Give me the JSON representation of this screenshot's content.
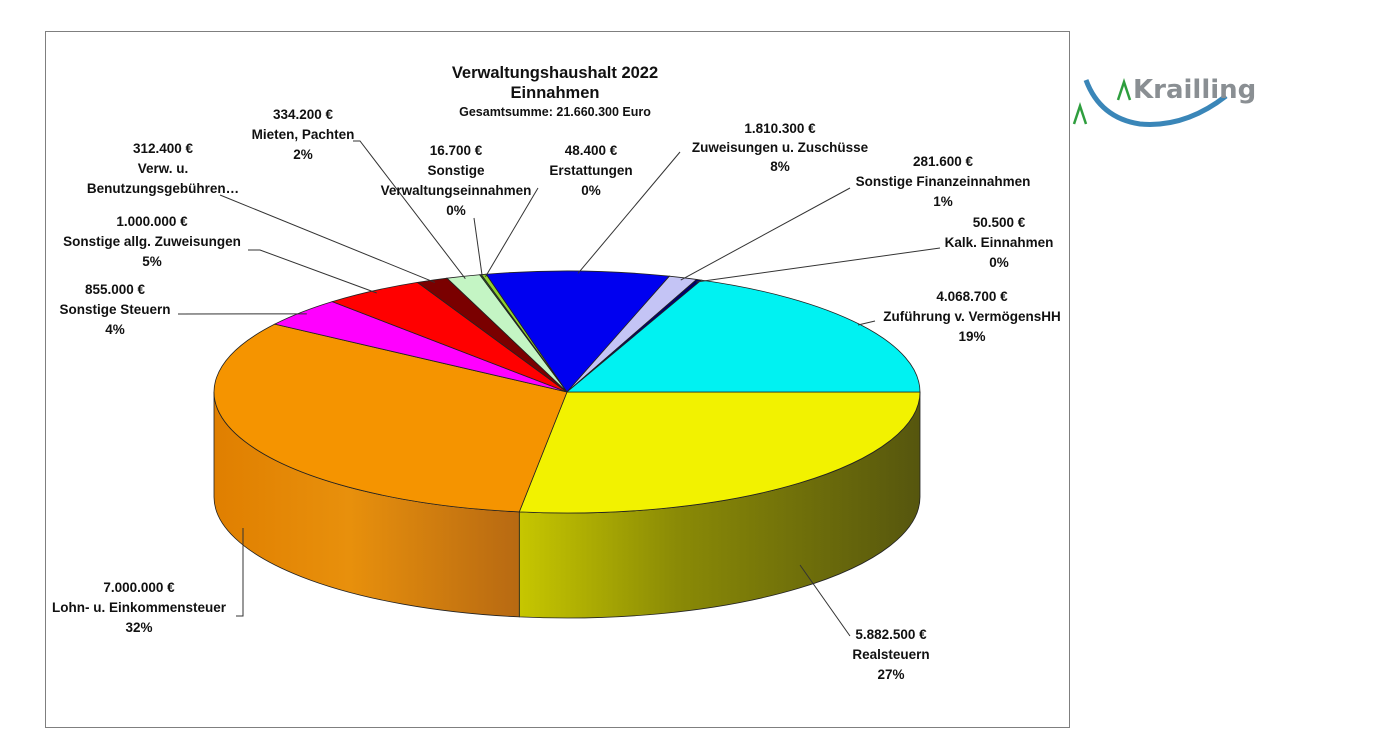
{
  "chart_data": {
    "type": "pie",
    "title": "Verwaltungshaushalt 2022",
    "subtitle": "Einnahmen",
    "total_label": "Gesamtsumme: 21.660.300 Euro",
    "slices": [
      {
        "key": "realsteuern",
        "label": "Realsteuern",
        "value": 5882500,
        "value_label": "5.882.500 €",
        "percent_label": "27%",
        "color": "#f2f200"
      },
      {
        "key": "lohn",
        "label": "Lohn- u. Einkommensteuer",
        "value": 7000000,
        "value_label": "7.000.000 €",
        "percent_label": "32%",
        "color": "#f59400"
      },
      {
        "key": "sonstige_steuern",
        "label": "Sonstige Steuern",
        "value": 855000,
        "value_label": "855.000 €",
        "percent_label": "4%",
        "color": "#ff00ff"
      },
      {
        "key": "zuweisungen_allg",
        "label": "Sonstige allg. Zuweisungen",
        "value": 1000000,
        "value_label": "1.000.000 €",
        "percent_label": "5%",
        "color": "#ff0000"
      },
      {
        "key": "verw_gebuehren",
        "label": "Verw. u. Benutzungsgebühren…",
        "value": 312400,
        "value_label": "312.400 €",
        "percent_label": "",
        "color": "#7a0000"
      },
      {
        "key": "mieten",
        "label": "Mieten, Pachten",
        "value": 334200,
        "value_label": "334.200 €",
        "percent_label": "2%",
        "color": "#c4f5c4"
      },
      {
        "key": "sonst_verw",
        "label": "Sonstige Verwaltungseinnahmen",
        "value": 16700,
        "value_label": "16.700 €",
        "percent_label": "0%",
        "color": "#2a6e2a"
      },
      {
        "key": "erstattungen",
        "label": "Erstattungen",
        "value": 48400,
        "value_label": "48.400 €",
        "percent_label": "0%",
        "color": "#8fd02f"
      },
      {
        "key": "zuweisungen_zuschuesse",
        "label": "Zuweisungen u. Zuschüsse",
        "value": 1810300,
        "value_label": "1.810.300 €",
        "percent_label": "8%",
        "color": "#0000f0"
      },
      {
        "key": "finanzeinnahmen",
        "label": "Sonstige Finanzeinnahmen",
        "value": 281600,
        "value_label": "281.600 €",
        "percent_label": "1%",
        "color": "#c4c4f5"
      },
      {
        "key": "kalk",
        "label": "Kalk. Einnahmen",
        "value": 50500,
        "value_label": "50.500 €",
        "percent_label": "0%",
        "color": "#00006e"
      },
      {
        "key": "zufuehrung",
        "label": "Zuführung v. VermögensHH",
        "value": 4068700,
        "value_label": "4.068.700 €",
        "percent_label": "19%",
        "color": "#00f2f2"
      }
    ]
  },
  "labels": {
    "zuweisungen_zuschuesse": {
      "value": "1.810.300 €",
      "name": "Zuweisungen u. Zuschüsse",
      "pct": "8%"
    },
    "finanzeinnahmen": {
      "value": "281.600 €",
      "name": "Sonstige Finanzeinnahmen",
      "pct": "1%"
    },
    "kalk": {
      "value": "50.500 €",
      "name": "Kalk. Einnahmen",
      "pct": "0%"
    },
    "zufuehrung": {
      "value": "4.068.700 €",
      "name": "Zuführung v. VermögensHH",
      "pct": "19%"
    },
    "realsteuern": {
      "value": "5.882.500 €",
      "name": "Realsteuern",
      "pct": "27%"
    },
    "lohn": {
      "value": "7.000.000 €",
      "name": "Lohn- u. Einkommensteuer",
      "pct": "32%"
    },
    "sonstige_steuern": {
      "value": "855.000 €",
      "name": "Sonstige Steuern",
      "pct": "4%"
    },
    "zuweisungen_allg": {
      "value": "1.000.000 €",
      "name": "Sonstige allg. Zuweisungen",
      "pct": "5%"
    },
    "verw_gebuehren": {
      "value": "312.400 €",
      "name1": "Verw. u.",
      "name2": "Benutzungsgebühren…"
    },
    "mieten": {
      "value": "334.200 €",
      "name": "Mieten, Pachten",
      "pct": "2%"
    },
    "sonst_verw": {
      "value": "16.700 €",
      "name1": "Sonstige",
      "name2": "Verwaltungseinnahmen",
      "pct": "0%"
    },
    "erstattungen": {
      "value": "48.400 €",
      "name": "Erstattungen",
      "pct": "0%"
    }
  },
  "logo": {
    "text": "Krailling",
    "colors": {
      "arc": "#3a86b8",
      "ticks": "#2e9e3e",
      "text": "#8a8f93"
    }
  }
}
